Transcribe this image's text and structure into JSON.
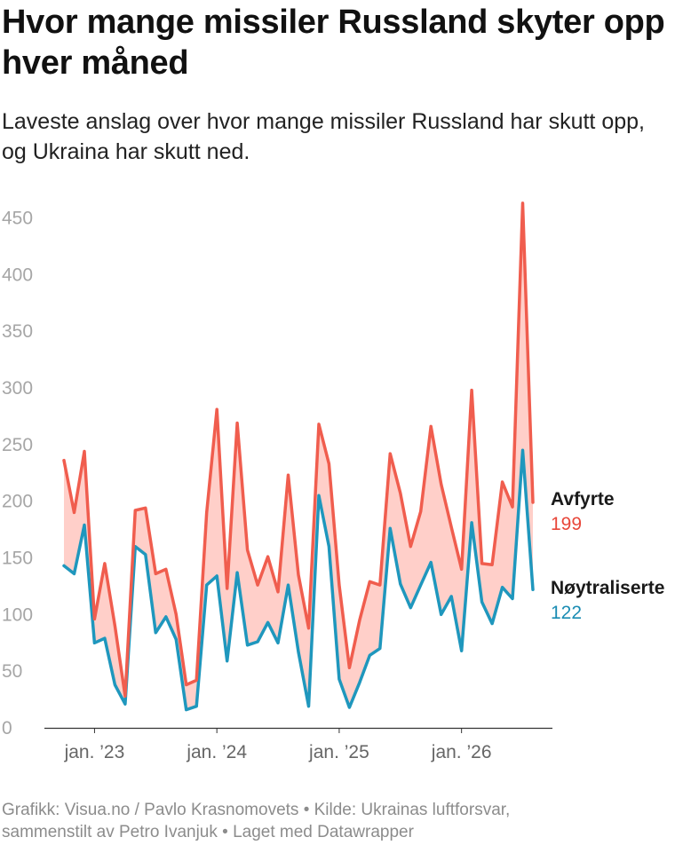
{
  "title": "Hvor mange missiler Russland skyter opp hver måned",
  "subtitle": "Laveste anslag over hvor mange missiler Russland har skutt opp, og Ukraina har skutt ned.",
  "footer": {
    "line1": "Grafikk: Visua.no / Pavlo Krasnomovets • Kilde: Ukrainas luftforsvar,",
    "line2": "sammenstilt av Petro Ivanjuk • Laget med Datawrapper"
  },
  "chart_data": {
    "type": "area",
    "x_start": "2022-10",
    "x_tick_labels": [
      "jan. ’23",
      "jan. ’24",
      "jan. ’25",
      "jan. ’26"
    ],
    "x_tick_index": [
      3,
      15,
      27,
      39
    ],
    "y_ticks": [
      0,
      50,
      100,
      150,
      200,
      250,
      300,
      350,
      400,
      450
    ],
    "ylim": [
      0,
      470
    ],
    "grid": false,
    "fill_color": "#ffcfc9",
    "series": [
      {
        "name": "Avfyrte",
        "color": "#f05d4e",
        "label_color": "#e8473a",
        "last_value": "199",
        "values": [
          236,
          190,
          244,
          96,
          145,
          90,
          28,
          192,
          194,
          136,
          140,
          100,
          38,
          42,
          190,
          281,
          123,
          269,
          157,
          126,
          151,
          120,
          223,
          135,
          88,
          268,
          233,
          126,
          53,
          95,
          129,
          126,
          242,
          207,
          160,
          191,
          266,
          215,
          177,
          140,
          298,
          145,
          144,
          217,
          195,
          463,
          199
        ]
      },
      {
        "name": "Nøytraliserte",
        "color": "#1f97bd",
        "label_color": "#1a8cb3",
        "last_value": "122",
        "values": [
          143,
          136,
          179,
          75,
          79,
          38,
          21,
          160,
          153,
          84,
          98,
          78,
          16,
          19,
          126,
          134,
          59,
          137,
          73,
          76,
          93,
          75,
          126,
          67,
          19,
          205,
          160,
          43,
          18,
          40,
          64,
          70,
          176,
          127,
          106,
          126,
          146,
          100,
          116,
          68,
          181,
          111,
          92,
          124,
          114,
          245,
          122
        ]
      }
    ]
  }
}
